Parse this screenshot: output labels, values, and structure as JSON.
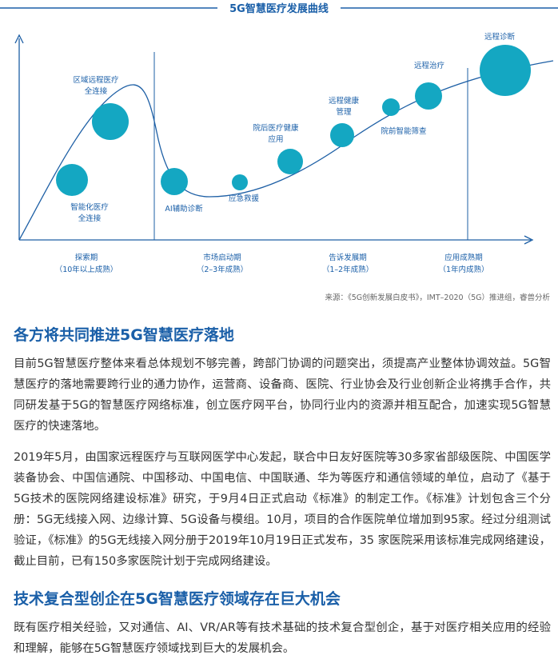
{
  "diagram": {
    "title": "5G智慧医疗发展曲线",
    "nodes": [
      {
        "label": [
          "智能化医疗",
          "全连接"
        ]
      },
      {
        "label": [
          "区域远程医疗",
          "全连接"
        ]
      },
      {
        "label": [
          "AI辅助诊断"
        ]
      },
      {
        "label": [
          "应急救援"
        ]
      },
      {
        "label": [
          "院后医疗健康",
          "应用"
        ]
      },
      {
        "label": [
          "远程健康",
          "管理"
        ]
      },
      {
        "label": [
          "院前智能筛查"
        ]
      },
      {
        "label": [
          "远程治疗"
        ]
      },
      {
        "label": [
          "远程诊断"
        ]
      }
    ],
    "phases": [
      {
        "name": "探索期",
        "note": "（10年以上成熟）"
      },
      {
        "name": "市场启动期",
        "note": "（2–3年成熟）"
      },
      {
        "name": "告诉发展期",
        "note": "（1–2年成熟）"
      },
      {
        "name": "应用成熟期",
        "note": "（1年内成熟）"
      }
    ],
    "source": "来源：《5G创新发展白皮书》，IMT–2020（5G）推进组，睿兽分析"
  },
  "sections": [
    {
      "heading": "各方将共同推进5G智慧医疗落地",
      "paragraphs": [
        "目前5G智慧医疗整体来看总体规划不够完善，跨部门协调的问题突出，须提高产业整体协调效益。5G智慧医疗的落地需要跨行业的通力协作，运营商、设备商、医院、行业协会及行业创新企业将携手合作，共同研发基于5G的智慧医疗网络标准，创立医疗网平台，协同行业内的资源并相互配合，加速实现5G智慧医疗的快速落地。",
        "2019年5月，由国家远程医疗与互联网医学中心发起，联合中日友好医院等30多家省部级医院、中国医学装备协会、中国信通院、中国移动、中国电信、中国联通、华为等医疗和通信领域的单位，启动了《基于5G技术的医院网络建设标准》研究，于9月4日正式启动《标准》的制定工作。《标准》计划包含三个分册：5G无线接入网、边缘计算、5G设备与模组。10月，项目的合作医院单位增加到95家。经过分组测试验证，《标准》的5G无线接入网分册于2019年10月19日正式发布，35 家医院采用该标准完成网络建设，截止目前，已有150多家医院计划于完成网络建设。"
      ]
    },
    {
      "heading": "技术复合型创企在5G智慧医疗领域存在巨大机会",
      "paragraphs": [
        "既有医疗相关经验，又对通信、AI、VR/AR等有技术基础的技术复合型创企，基于对医疗相关应用的经验和理解，能够在5G智慧医疗领域找到巨大的发展机会。"
      ]
    }
  ]
}
